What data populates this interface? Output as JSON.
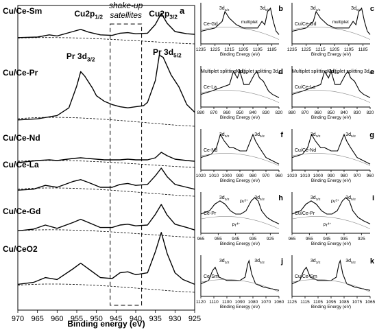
{
  "chart_data": [
    {
      "type": "line",
      "panel": "a",
      "xlabel": "Binding energy (eV)",
      "ylabel": "",
      "x_reversed": true,
      "xlim": [
        925,
        970
      ],
      "x_ticks": [
        970,
        965,
        960,
        955,
        950,
        945,
        940,
        935,
        930,
        925
      ],
      "annotations": [
        "Cu2p1/2",
        "Cu2p3/2",
        "Pr 3d3/2",
        "Pr 3d5/2",
        "shake-up satellites"
      ],
      "series": [
        {
          "name": "Cu/Ce-Sm",
          "x": [
            970,
            965,
            962,
            960,
            956,
            954,
            952,
            949,
            946,
            944,
            942,
            940,
            937,
            935,
            933.5,
            932,
            930,
            927,
            925
          ],
          "y": [
            0.4,
            0.5,
            0.9,
            0.7,
            1.5,
            1.9,
            1.4,
            0.9,
            0.8,
            1.2,
            1.3,
            1.1,
            1.2,
            2.8,
            4.8,
            3.0,
            1.5,
            1.1,
            1.0
          ]
        },
        {
          "name": "Cu/Ce-Pr",
          "x": [
            970,
            965,
            960,
            957,
            955,
            954,
            953,
            951,
            950,
            948,
            946,
            944,
            942,
            940,
            938,
            937,
            935,
            934,
            933,
            931,
            929,
            927,
            925
          ],
          "y": [
            0.2,
            0.3,
            0.6,
            1.3,
            3.3,
            4.6,
            4.2,
            3.1,
            2.4,
            1.9,
            1.6,
            1.4,
            1.3,
            1.4,
            1.5,
            1.8,
            3.8,
            6.1,
            5.9,
            4.3,
            3.2,
            1.6,
            0.9
          ]
        },
        {
          "name": "Cu/Ce-Nd",
          "x": [
            970,
            965,
            962,
            960,
            956,
            954,
            952,
            948,
            944,
            942,
            940,
            937,
            935,
            933.5,
            932,
            930,
            927,
            925
          ],
          "y": [
            0.1,
            0.4,
            0.5,
            0.4,
            0.7,
            0.8,
            0.7,
            0.5,
            0.5,
            0.6,
            0.5,
            0.5,
            0.8,
            1.6,
            1.1,
            0.6,
            0.4,
            0.3
          ]
        },
        {
          "name": "Cu/Ce-La",
          "x": [
            970,
            966,
            963,
            960,
            956,
            954,
            952,
            949,
            946,
            944,
            942,
            940,
            937,
            935,
            933.5,
            932,
            930,
            927,
            925
          ],
          "y": [
            0.2,
            0.3,
            0.7,
            0.5,
            1.1,
            1.3,
            1.0,
            0.5,
            0.5,
            0.8,
            0.9,
            0.7,
            0.8,
            1.7,
            2.5,
            1.6,
            0.8,
            0.5,
            0.3
          ]
        },
        {
          "name": "Cu/Ce-Gd",
          "x": [
            970,
            966,
            963,
            960,
            956,
            954,
            952,
            949,
            946,
            944,
            942,
            940,
            937,
            935,
            933.5,
            932,
            930,
            927,
            925
          ],
          "y": [
            0.3,
            0.5,
            1.0,
            0.6,
            1.3,
            1.7,
            1.3,
            0.7,
            0.7,
            1.0,
            1.1,
            0.9,
            1.0,
            2.3,
            3.5,
            2.2,
            1.1,
            0.7,
            0.4
          ]
        },
        {
          "name": "Cu/CeO2",
          "x": [
            970,
            966,
            963,
            960,
            956,
            954,
            952,
            949,
            946,
            944,
            942,
            940,
            937,
            935,
            933.5,
            932,
            930,
            928,
            925
          ],
          "y": [
            0.4,
            0.6,
            1.1,
            0.9,
            2.0,
            2.6,
            2.0,
            1.1,
            1.0,
            1.6,
            1.7,
            1.4,
            1.6,
            3.8,
            5.8,
            3.6,
            1.6,
            0.9,
            0.4
          ]
        }
      ]
    },
    {
      "type": "line",
      "panel": "b",
      "xlabel": "Binding Energy (eV)",
      "xlim": [
        1180,
        1235
      ],
      "x_ticks": [
        1235,
        1225,
        1215,
        1205,
        1195,
        1185
      ],
      "annotations": [
        "3d3/2",
        "3d5/2",
        "multiplet"
      ],
      "series": [
        {
          "name": "Ce-Gd",
          "x": [
            1235,
            1225,
            1220,
            1218,
            1215,
            1210,
            1205,
            1200,
            1195,
            1192,
            1190,
            1188,
            1186,
            1184,
            1182,
            1180
          ],
          "y": [
            0.3,
            0.4,
            0.6,
            0.9,
            0.7,
            0.5,
            0.4,
            0.4,
            0.4,
            0.6,
            0.5,
            0.9,
            1.0,
            0.6,
            0.3,
            0.2
          ]
        }
      ]
    },
    {
      "type": "line",
      "panel": "c",
      "xlabel": "Binding Energy (eV)",
      "xlim": [
        1180,
        1235
      ],
      "x_ticks": [
        1235,
        1225,
        1215,
        1205,
        1195,
        1185
      ],
      "annotations": [
        "3d3/2",
        "3d5/2",
        "multiplet"
      ],
      "series": [
        {
          "name": "Cu/Ce-Gd",
          "x": [
            1235,
            1225,
            1220,
            1218,
            1215,
            1210,
            1205,
            1200,
            1195,
            1192,
            1190,
            1188,
            1186,
            1184,
            1182,
            1180
          ],
          "y": [
            0.3,
            0.4,
            0.6,
            0.9,
            0.7,
            0.5,
            0.4,
            0.4,
            0.4,
            0.6,
            0.5,
            0.9,
            1.0,
            0.6,
            0.3,
            0.2
          ]
        }
      ]
    },
    {
      "type": "line",
      "panel": "d",
      "xlabel": "Binding Energy (eV)",
      "xlim": [
        820,
        880
      ],
      "x_ticks": [
        880,
        870,
        860,
        850,
        840,
        830,
        820
      ],
      "annotations": [
        "Multiplet splitting 3d3/2",
        "Multiplet splitting 3d5/2"
      ],
      "series": [
        {
          "name": "Ce-La",
          "x": [
            880,
            872,
            865,
            858,
            855,
            852,
            850,
            847,
            843,
            839,
            837,
            835,
            832,
            828,
            825,
            820
          ],
          "y": [
            0.3,
            0.4,
            0.5,
            0.6,
            1.0,
            0.8,
            1.0,
            0.6,
            0.6,
            0.9,
            1.0,
            0.8,
            0.7,
            0.4,
            0.3,
            0.2
          ]
        }
      ]
    },
    {
      "type": "line",
      "panel": "e",
      "xlabel": "Binding Energy (eV)",
      "xlim": [
        820,
        880
      ],
      "x_ticks": [
        880,
        870,
        860,
        850,
        840,
        830,
        820
      ],
      "annotations": [
        "Multiplet splitting 3d3/2",
        "Multiplet splitting 3d5/2"
      ],
      "series": [
        {
          "name": "Cu/Ce-La",
          "x": [
            880,
            872,
            865,
            858,
            855,
            852,
            850,
            847,
            843,
            839,
            837,
            835,
            832,
            828,
            825,
            820
          ],
          "y": [
            0.3,
            0.4,
            0.5,
            0.6,
            1.0,
            0.8,
            1.0,
            0.6,
            0.6,
            0.9,
            1.0,
            0.8,
            0.7,
            0.4,
            0.3,
            0.2
          ]
        }
      ]
    },
    {
      "type": "line",
      "panel": "f",
      "xlabel": "Binding Energy (eV)",
      "xlim": [
        960,
        1020
      ],
      "x_ticks": [
        1020,
        1010,
        1000,
        990,
        980,
        970,
        960
      ],
      "annotations": [
        "3d3/2",
        "3d5/2"
      ],
      "series": [
        {
          "name": "Ce-Nd",
          "x": [
            1020,
            1012,
            1008,
            1005,
            1002,
            998,
            995,
            990,
            985,
            982,
            980,
            978,
            975,
            970,
            965,
            960
          ],
          "y": [
            0.3,
            0.4,
            0.6,
            1.0,
            0.8,
            0.6,
            0.6,
            0.5,
            0.5,
            0.8,
            1.0,
            0.8,
            0.6,
            0.3,
            0.2,
            0.1
          ]
        }
      ]
    },
    {
      "type": "line",
      "panel": "g",
      "xlabel": "Binding Energy (eV)",
      "xlim": [
        960,
        1020
      ],
      "x_ticks": [
        1020,
        1010,
        1000,
        990,
        980,
        970,
        960
      ],
      "annotations": [
        "3d3/2",
        "3d5/2"
      ],
      "series": [
        {
          "name": "Cu/Ce-Nd",
          "x": [
            1020,
            1012,
            1008,
            1005,
            1002,
            998,
            995,
            990,
            985,
            982,
            980,
            978,
            975,
            970,
            965,
            960
          ],
          "y": [
            0.3,
            0.4,
            0.6,
            1.0,
            0.8,
            0.6,
            0.6,
            0.5,
            0.5,
            0.8,
            1.0,
            0.8,
            0.6,
            0.3,
            0.2,
            0.1
          ]
        }
      ]
    },
    {
      "type": "line",
      "panel": "h",
      "xlabel": "Binding Energy (eV)",
      "xlim": [
        920,
        965
      ],
      "x_ticks": [
        965,
        955,
        945,
        935,
        925
      ],
      "annotations": [
        "3d3/2",
        "3d5/2",
        "Pr3+",
        "Pr4+"
      ],
      "series": [
        {
          "name": "Ce-Pr",
          "x": [
            965,
            960,
            957,
            954,
            951,
            948,
            945,
            942,
            939,
            936,
            934,
            932,
            930,
            927,
            924,
            920
          ],
          "y": [
            0.5,
            0.6,
            0.8,
            0.9,
            0.8,
            0.6,
            0.5,
            0.5,
            0.6,
            0.9,
            1.0,
            0.9,
            0.6,
            0.4,
            0.3,
            0.2
          ]
        }
      ]
    },
    {
      "type": "line",
      "panel": "i",
      "xlabel": "Binding Energy (eV)",
      "xlim": [
        920,
        965
      ],
      "x_ticks": [
        965,
        955,
        945,
        935,
        925
      ],
      "annotations": [
        "3d3/2",
        "3d5/2",
        "Pr3+",
        "Pr4+"
      ],
      "series": [
        {
          "name": "Cu/Ce-Pr",
          "x": [
            965,
            960,
            957,
            954,
            951,
            948,
            945,
            942,
            939,
            936,
            934,
            932,
            930,
            927,
            924,
            920
          ],
          "y": [
            0.5,
            0.6,
            0.8,
            0.9,
            0.8,
            0.6,
            0.5,
            0.5,
            0.6,
            0.9,
            1.0,
            0.9,
            0.6,
            0.4,
            0.3,
            0.2
          ]
        }
      ]
    },
    {
      "type": "line",
      "panel": "j",
      "xlabel": "Binding Energy (eV)",
      "xlim": [
        1060,
        1120
      ],
      "x_ticks": [
        1120,
        1110,
        1100,
        1090,
        1080,
        1070,
        1060
      ],
      "annotations": [
        "3d3/2",
        "3d5/2"
      ],
      "series": [
        {
          "name": "Ce-Sm",
          "x": [
            1120,
            1114,
            1111,
            1109,
            1106,
            1100,
            1095,
            1090,
            1086,
            1084,
            1083,
            1081,
            1078,
            1072,
            1066,
            1060
          ],
          "y": [
            0.3,
            0.4,
            0.7,
            0.8,
            0.5,
            0.4,
            0.4,
            0.4,
            0.5,
            0.9,
            1.0,
            0.6,
            0.3,
            0.2,
            0.15,
            0.1
          ]
        }
      ]
    },
    {
      "type": "line",
      "panel": "k",
      "xlabel": "Binding Energy (eV)",
      "xlim": [
        1065,
        1125
      ],
      "x_ticks": [
        1125,
        1115,
        1105,
        1095,
        1085,
        1075,
        1065
      ],
      "annotations": [
        "3d3/2",
        "3d5/2"
      ],
      "series": [
        {
          "name": "Cu/Ce-Sm",
          "x": [
            1125,
            1119,
            1116,
            1114,
            1111,
            1105,
            1100,
            1095,
            1091,
            1089,
            1088,
            1086,
            1083,
            1077,
            1071,
            1065
          ],
          "y": [
            0.3,
            0.4,
            0.7,
            0.8,
            0.5,
            0.4,
            0.4,
            0.4,
            0.5,
            0.9,
            1.0,
            0.6,
            0.3,
            0.2,
            0.15,
            0.1
          ]
        }
      ]
    }
  ]
}
